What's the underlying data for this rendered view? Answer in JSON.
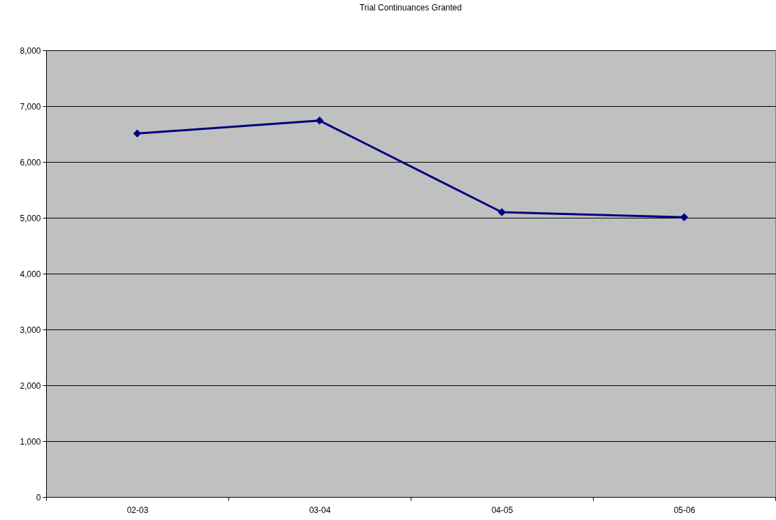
{
  "chart_data": {
    "type": "line",
    "title": "Trial Continuances Granted",
    "categories": [
      "02-03",
      "03-04",
      "04-05",
      "05-06"
    ],
    "series": [
      {
        "color": "#000080",
        "values": [
          6510,
          6740,
          5100,
          5010
        ]
      }
    ],
    "ylim": [
      0,
      8000
    ],
    "yticks": [
      {
        "value": 0,
        "label": "0"
      },
      {
        "value": 1000,
        "label": "1,000"
      },
      {
        "value": 2000,
        "label": "2,000"
      },
      {
        "value": 3000,
        "label": "3,000"
      },
      {
        "value": 4000,
        "label": "4,000"
      },
      {
        "value": 5000,
        "label": "5,000"
      },
      {
        "value": 6000,
        "label": "6,000"
      },
      {
        "value": 7000,
        "label": "7,000"
      },
      {
        "value": 8000,
        "label": "8,000"
      }
    ],
    "grid": "y",
    "marker": "diamond",
    "line_style": "solid"
  }
}
